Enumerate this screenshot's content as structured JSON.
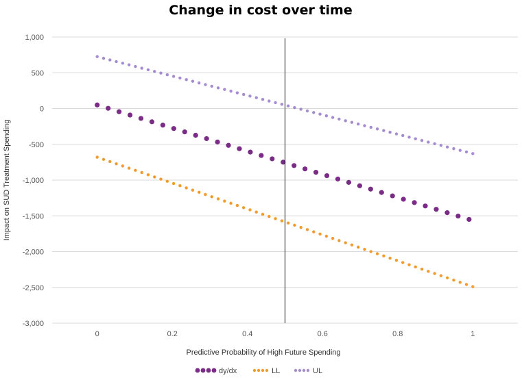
{
  "chart_data": {
    "type": "scatter",
    "title": "Change in cost over time",
    "xlabel": "Predictive Probability of High Future Spending",
    "ylabel": "Impact on SUD Treatment Spending",
    "xlim": [
      -0.12,
      1.12
    ],
    "ylim": [
      -3000,
      1000
    ],
    "x_ticks": [
      0,
      0.2,
      0.4,
      0.6,
      0.8,
      1
    ],
    "x_tick_labels": [
      "0",
      "0.2",
      "0.4",
      "0.6",
      "0.8",
      "1"
    ],
    "y_ticks": [
      1000,
      500,
      0,
      -500,
      -1000,
      -1500,
      -2000,
      -2500,
      -3000
    ],
    "y_tick_labels": [
      "1,000",
      "500",
      "0",
      "-500",
      "-1,000",
      "-1,500",
      "-2,000",
      "-2,500",
      "-3,000"
    ],
    "grid": true,
    "legend_position": "bottom",
    "vertical_line": {
      "x": 0.5
    },
    "series": [
      {
        "name": "dy/dx",
        "color": "#7a2c86",
        "x_start": 0,
        "x_end": 0.99,
        "y_start": 50,
        "y_end": -1550,
        "points": 35,
        "marker": "large"
      },
      {
        "name": "LL",
        "color": "#f39a2d",
        "x_start": 0,
        "x_end": 1.0,
        "y_start": -680,
        "y_end": -2490,
        "points": 60,
        "marker": "small"
      },
      {
        "name": "UL",
        "color": "#a58cd0",
        "x_start": 0,
        "x_end": 1.0,
        "y_start": 725,
        "y_end": -630,
        "points": 60,
        "marker": "small"
      }
    ]
  }
}
